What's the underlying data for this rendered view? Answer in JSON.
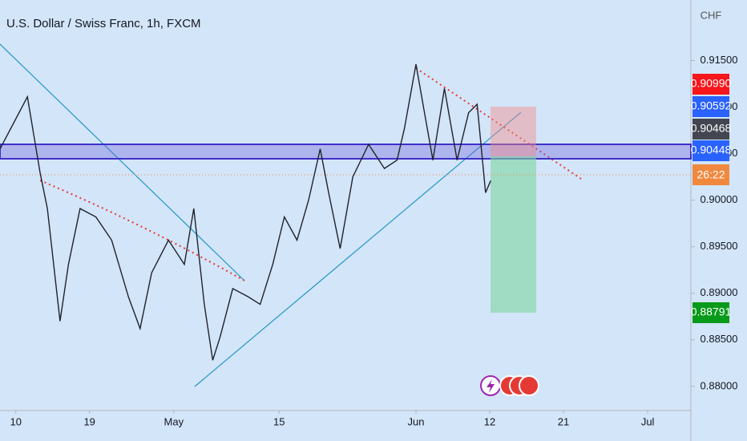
{
  "chart_data": {
    "type": "line",
    "title": "U.S. Dollar / Swiss Franc, 1h, FXCM",
    "currency": "CHF",
    "countdown": "26:22",
    "x": [
      -1.5,
      1.1,
      2.3,
      3.0,
      4.2,
      5.0,
      6.1,
      7.6,
      9.1,
      10.7,
      11.8,
      12.9,
      14.5,
      16.0,
      16.9,
      17.9,
      18.7,
      19.4,
      20.6,
      22.1,
      23.2,
      24.4,
      25.5,
      26.7,
      27.8,
      28.9,
      29.7,
      30.8,
      32.0,
      33.5,
      35.0,
      36.2,
      36.9,
      38.0,
      38.8,
      39.6,
      40.7,
      41.9,
      43.0,
      43.8,
      44.6,
      45.1
    ],
    "series": [
      {
        "name": "USDCHF",
        "color": "#1e222d",
        "values": [
          0.9055,
          0.9111,
          0.903,
          0.8991,
          0.887,
          0.8931,
          0.8991,
          0.8982,
          0.8957,
          0.8896,
          0.8862,
          0.8922,
          0.8957,
          0.8931,
          0.8991,
          0.8888,
          0.8828,
          0.8853,
          0.8905,
          0.8896,
          0.8888,
          0.8931,
          0.8982,
          0.8957,
          0.9,
          0.9055,
          0.9008,
          0.8948,
          0.9025,
          0.906,
          0.9034,
          0.9043,
          0.9077,
          0.9146,
          0.9094,
          0.9043,
          0.912,
          0.9043,
          0.9094,
          0.9103,
          0.9008,
          0.9021
        ]
      }
    ],
    "xlim": [
      -1.5,
      64.1
    ],
    "xticks": [
      {
        "value": 0,
        "label": "10"
      },
      {
        "value": 7,
        "label": "19"
      },
      {
        "value": 15,
        "label": "May"
      },
      {
        "value": 25,
        "label": "15"
      },
      {
        "value": 38,
        "label": "Jun"
      },
      {
        "value": 45,
        "label": "12"
      },
      {
        "value": 52,
        "label": "21"
      },
      {
        "value": 60,
        "label": "Jul"
      }
    ],
    "ylim": [
      0.8774,
      0.9215
    ],
    "yticks": [
      {
        "value": 0.88,
        "label": "0.88000"
      },
      {
        "value": 0.885,
        "label": "0.88500"
      },
      {
        "value": 0.89,
        "label": "0.89000"
      },
      {
        "value": 0.895,
        "label": "0.89500"
      },
      {
        "value": 0.9,
        "label": "0.90000"
      },
      {
        "value": 0.905,
        "label": "0.90500"
      },
      {
        "value": 0.91,
        "label": "0.91000"
      },
      {
        "value": 0.915,
        "label": "0.91500"
      }
    ],
    "price_labels": [
      {
        "label": "0.90990",
        "color": "#f7161b"
      },
      {
        "label": "0.90592",
        "color": "#2962ff"
      },
      {
        "label": "0.90468",
        "color": "#434651"
      },
      {
        "label": "0.90448",
        "color": "#2962ff"
      },
      {
        "label": "0.88791",
        "color": "#089a1a"
      }
    ]
  }
}
